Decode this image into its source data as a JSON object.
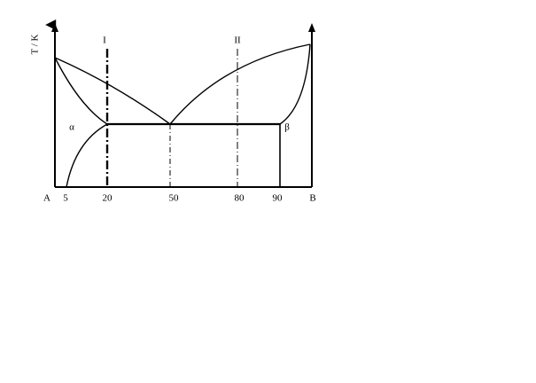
{
  "axis_label": "T / K",
  "lines": [
    "I",
    "II"
  ],
  "phases": [
    "α",
    "β"
  ],
  "x_axis": {
    "labels": [
      "A",
      "5",
      "20",
      "50",
      "80",
      "90",
      "B"
    ]
  }
}
